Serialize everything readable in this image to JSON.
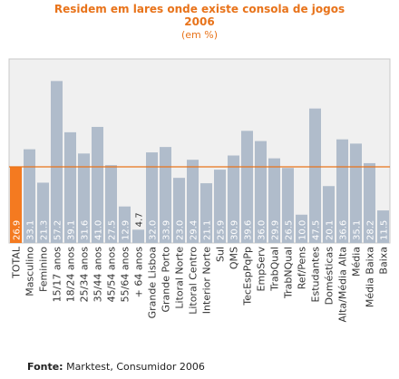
{
  "chart_data": {
    "type": "bar",
    "title": "Residem em lares onde existe consola de jogos",
    "title_year": "2006",
    "subtitle": "(em %)",
    "categories": [
      "TOTAL",
      "Masculino",
      "Feminino",
      "15/17 anos",
      "18/24 anos",
      "25/34 anos",
      "35/44 anos",
      "45/54 anos",
      "55/64 anos",
      "+ 64 anos",
      "Grande Lisboa",
      "Grande Porto",
      "Litoral Norte",
      "Litoral Centro",
      "Interior Norte",
      "Sul",
      "QMS",
      "TecEspPqPp",
      "EmpServ",
      "TrabQual",
      "TrabNQual",
      "Ref/Pens",
      "Estudantes",
      "Domésticas",
      "Alta/Média Alta",
      "Média",
      "Média Baixa",
      "Baixa"
    ],
    "values": [
      26.9,
      33.1,
      21.3,
      57.2,
      39.1,
      31.6,
      41.0,
      27.5,
      12.9,
      4.7,
      32.0,
      33.9,
      23.0,
      29.4,
      21.1,
      25.9,
      30.9,
      39.6,
      36.0,
      29.9,
      26.5,
      10.0,
      47.5,
      20.1,
      36.6,
      35.1,
      28.2,
      11.5
    ],
    "value_labels": [
      "26.9",
      "33.1",
      "21.3",
      "57.2",
      "39.1",
      "31.6",
      "41.0",
      "27.5",
      "12.9",
      "4.7",
      "32.0",
      "33.9",
      "23.0",
      "29.4",
      "21.1",
      "25.9",
      "30.9",
      "39.6",
      "36.0",
      "29.9",
      "26.5",
      "10.0",
      "47.5",
      "20.1",
      "36.6",
      "35.1",
      "28.2",
      "11.5"
    ],
    "highlight_category": "TOTAL",
    "reference_line": 26.9,
    "ylim": [
      0,
      65
    ],
    "grid": false,
    "colors": {
      "bar": "#b0bccb",
      "highlight": "#f47a20",
      "reference_line": "#e8731a",
      "plot_bg": "#f0f0f0",
      "plot_border": "#c8c8c8",
      "title": "#e8731a"
    }
  },
  "source": {
    "label": "Fonte:",
    "text": "Marktest, Consumidor 2006"
  }
}
